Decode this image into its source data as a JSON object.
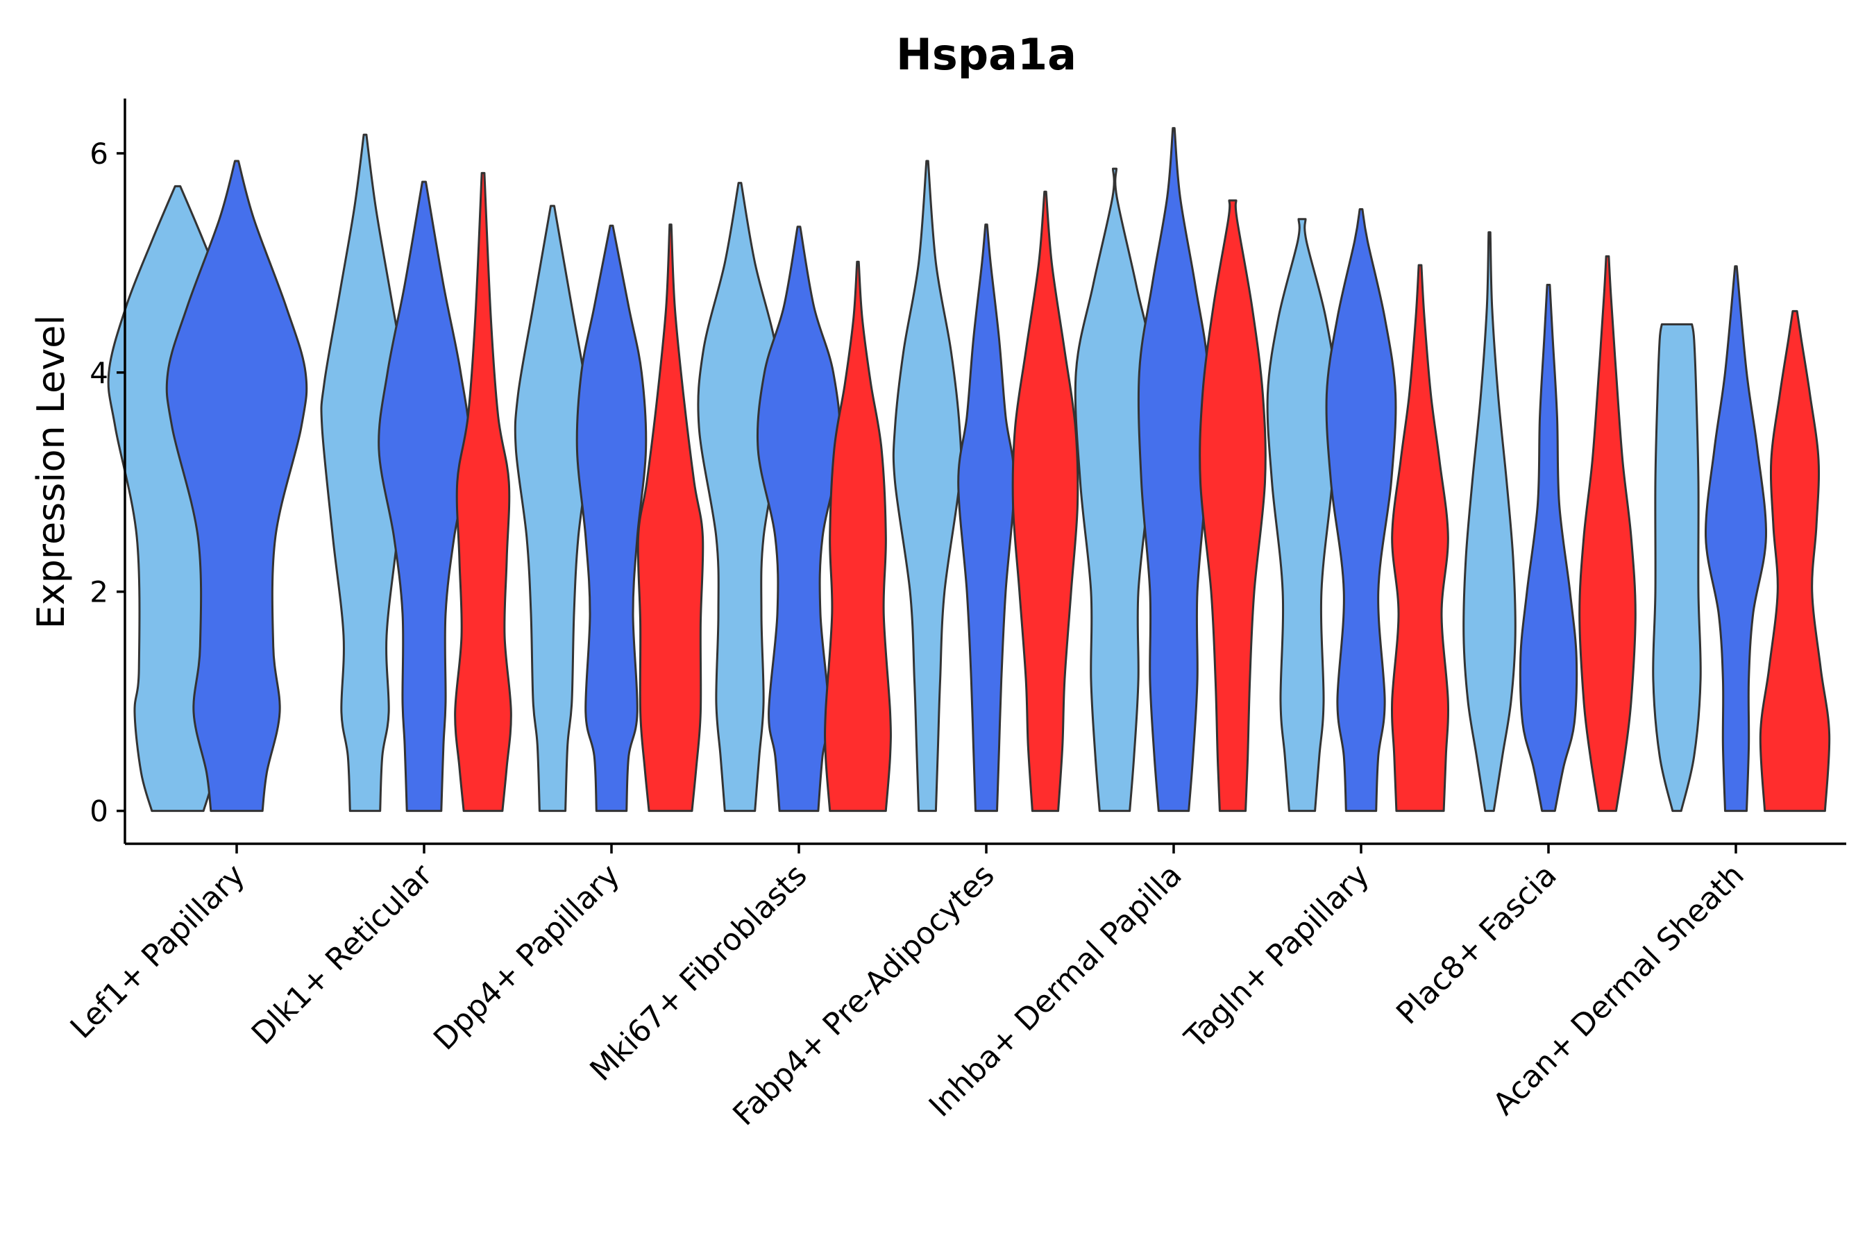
{
  "chart_data": {
    "type": "violin",
    "title": "Hspa1a",
    "xlabel": "",
    "ylabel": "Expression Level",
    "ylim": [
      -0.3,
      6.5
    ],
    "yticks": [
      0,
      2,
      4,
      6
    ],
    "grid": false,
    "legend": "none",
    "group_colors": [
      "#7fbfec",
      "#4570ec",
      "#ff2d2d"
    ],
    "categories": [
      "Lef1+ Papillary",
      "Dlk1+ Reticular",
      "Dpp4+ Papillary",
      "Mki67+ Fibroblasts",
      "Fabp4+ Pre-Adipocytes",
      "Inhba+ Dermal Papilla",
      "Tagln+ Papillary",
      "Plac8+ Fascia",
      "Acan+ Dermal Sheath"
    ],
    "violins": [
      {
        "category": "Lef1+ Papillary",
        "group": 0,
        "max": 5.7,
        "profile": [
          [
            0,
            0.6
          ],
          [
            0.35,
            0.85
          ],
          [
            0.9,
            1.0
          ],
          [
            1.3,
            0.9
          ],
          [
            2.5,
            0.95
          ],
          [
            3.5,
            1.45
          ],
          [
            4.0,
            1.6
          ],
          [
            4.6,
            1.2
          ],
          [
            5.2,
            0.6
          ],
          [
            5.7,
            0.06
          ]
        ]
      },
      {
        "category": "Lef1+ Papillary",
        "group": 1,
        "max": 5.93,
        "profile": [
          [
            0,
            0.6
          ],
          [
            0.35,
            0.7
          ],
          [
            0.9,
            1.0
          ],
          [
            1.5,
            0.85
          ],
          [
            2.5,
            0.9
          ],
          [
            3.5,
            1.5
          ],
          [
            4.0,
            1.6
          ],
          [
            4.6,
            1.15
          ],
          [
            5.4,
            0.4
          ],
          [
            5.93,
            0.04
          ]
        ]
      },
      {
        "category": "Dlk1+ Reticular",
        "group": 0,
        "max": 6.17,
        "profile": [
          [
            0,
            0.35
          ],
          [
            0.5,
            0.4
          ],
          [
            0.9,
            0.55
          ],
          [
            1.6,
            0.5
          ],
          [
            2.5,
            0.75
          ],
          [
            3.5,
            1.0
          ],
          [
            3.9,
            0.95
          ],
          [
            4.7,
            0.6
          ],
          [
            5.5,
            0.25
          ],
          [
            6.17,
            0.03
          ]
        ]
      },
      {
        "category": "Dlk1+ Reticular",
        "group": 1,
        "max": 5.74,
        "profile": [
          [
            0,
            0.4
          ],
          [
            0.6,
            0.45
          ],
          [
            1.0,
            0.5
          ],
          [
            1.8,
            0.5
          ],
          [
            2.5,
            0.7
          ],
          [
            3.3,
            1.05
          ],
          [
            4.0,
            0.85
          ],
          [
            4.8,
            0.45
          ],
          [
            5.74,
            0.04
          ]
        ]
      },
      {
        "category": "Dlk1+ Reticular",
        "group": 2,
        "max": 5.82,
        "profile": [
          [
            0,
            0.45
          ],
          [
            0.4,
            0.55
          ],
          [
            0.9,
            0.65
          ],
          [
            1.6,
            0.5
          ],
          [
            2.3,
            0.55
          ],
          [
            3.0,
            0.6
          ],
          [
            3.6,
            0.35
          ],
          [
            4.5,
            0.18
          ],
          [
            5.82,
            0.03
          ]
        ]
      },
      {
        "category": "Dpp4+ Papillary",
        "group": 0,
        "max": 5.52,
        "profile": [
          [
            0,
            0.3
          ],
          [
            0.6,
            0.35
          ],
          [
            1.0,
            0.45
          ],
          [
            1.8,
            0.5
          ],
          [
            2.5,
            0.6
          ],
          [
            3.3,
            0.85
          ],
          [
            3.8,
            0.8
          ],
          [
            4.6,
            0.45
          ],
          [
            5.52,
            0.04
          ]
        ]
      },
      {
        "category": "Dpp4+ Papillary",
        "group": 1,
        "max": 5.34,
        "profile": [
          [
            0,
            0.35
          ],
          [
            0.5,
            0.4
          ],
          [
            0.9,
            0.6
          ],
          [
            1.8,
            0.5
          ],
          [
            2.5,
            0.6
          ],
          [
            3.3,
            0.8
          ],
          [
            4.0,
            0.7
          ],
          [
            4.6,
            0.4
          ],
          [
            5.34,
            0.03
          ]
        ]
      },
      {
        "category": "Dpp4+ Papillary",
        "group": 2,
        "max": 5.35,
        "profile": [
          [
            0,
            0.5
          ],
          [
            0.4,
            0.6
          ],
          [
            0.9,
            0.7
          ],
          [
            1.7,
            0.7
          ],
          [
            2.5,
            0.75
          ],
          [
            3.0,
            0.55
          ],
          [
            3.8,
            0.3
          ],
          [
            4.6,
            0.1
          ],
          [
            5.35,
            0.02
          ]
        ]
      },
      {
        "category": "Mki67+ Fibroblasts",
        "group": 0,
        "max": 5.73,
        "profile": [
          [
            0,
            0.35
          ],
          [
            0.5,
            0.45
          ],
          [
            1.0,
            0.55
          ],
          [
            1.8,
            0.5
          ],
          [
            2.5,
            0.55
          ],
          [
            3.5,
            0.95
          ],
          [
            4.2,
            0.85
          ],
          [
            5.0,
            0.35
          ],
          [
            5.73,
            0.03
          ]
        ]
      },
      {
        "category": "Mki67+ Fibroblasts",
        "group": 1,
        "max": 5.33,
        "profile": [
          [
            0,
            0.45
          ],
          [
            0.5,
            0.55
          ],
          [
            0.9,
            0.7
          ],
          [
            1.8,
            0.5
          ],
          [
            2.5,
            0.55
          ],
          [
            3.3,
            0.95
          ],
          [
            4.0,
            0.8
          ],
          [
            4.6,
            0.35
          ],
          [
            5.33,
            0.03
          ]
        ]
      },
      {
        "category": "Mki67+ Fibroblasts",
        "group": 2,
        "max": 5.01,
        "profile": [
          [
            0,
            0.65
          ],
          [
            0.5,
            0.75
          ],
          [
            0.9,
            0.75
          ],
          [
            1.8,
            0.6
          ],
          [
            2.5,
            0.65
          ],
          [
            3.3,
            0.55
          ],
          [
            3.9,
            0.3
          ],
          [
            4.5,
            0.1
          ],
          [
            5.01,
            0.02
          ]
        ]
      },
      {
        "category": "Fabp4+ Pre-Adipocytes",
        "group": 0,
        "max": 5.93,
        "profile": [
          [
            0,
            0.2
          ],
          [
            0.6,
            0.25
          ],
          [
            1.2,
            0.3
          ],
          [
            2.0,
            0.4
          ],
          [
            3.0,
            0.75
          ],
          [
            3.5,
            0.75
          ],
          [
            4.2,
            0.55
          ],
          [
            5.0,
            0.2
          ],
          [
            5.93,
            0.02
          ]
        ]
      },
      {
        "category": "Fabp4+ Pre-Adipocytes",
        "group": 1,
        "max": 5.35,
        "profile": [
          [
            0,
            0.25
          ],
          [
            0.6,
            0.3
          ],
          [
            1.2,
            0.35
          ],
          [
            2.0,
            0.45
          ],
          [
            3.0,
            0.65
          ],
          [
            3.6,
            0.45
          ],
          [
            4.3,
            0.3
          ],
          [
            5.0,
            0.1
          ],
          [
            5.35,
            0.02
          ]
        ]
      },
      {
        "category": "Fabp4+ Pre-Adipocytes",
        "group": 2,
        "max": 5.65,
        "profile": [
          [
            0,
            0.3
          ],
          [
            0.6,
            0.4
          ],
          [
            1.2,
            0.45
          ],
          [
            2.0,
            0.6
          ],
          [
            2.8,
            0.75
          ],
          [
            3.5,
            0.7
          ],
          [
            4.2,
            0.45
          ],
          [
            5.0,
            0.15
          ],
          [
            5.65,
            0.02
          ]
        ]
      },
      {
        "category": "Inhba+ Dermal Papilla",
        "group": 0,
        "max": 5.86,
        "profile": [
          [
            0,
            0.35
          ],
          [
            0.5,
            0.45
          ],
          [
            1.2,
            0.55
          ],
          [
            2.0,
            0.55
          ],
          [
            3.0,
            0.8
          ],
          [
            4.0,
            0.9
          ],
          [
            4.8,
            0.5
          ],
          [
            5.6,
            0.05
          ],
          [
            5.86,
            0.04
          ]
        ]
      },
      {
        "category": "Inhba+ Dermal Papilla",
        "group": 1,
        "max": 6.23,
        "profile": [
          [
            0,
            0.35
          ],
          [
            0.5,
            0.45
          ],
          [
            1.2,
            0.55
          ],
          [
            2.0,
            0.55
          ],
          [
            3.0,
            0.75
          ],
          [
            4.0,
            0.8
          ],
          [
            4.8,
            0.5
          ],
          [
            5.6,
            0.15
          ],
          [
            6.23,
            0.02
          ]
        ]
      },
      {
        "category": "Inhba+ Dermal Papilla",
        "group": 2,
        "max": 5.57,
        "profile": [
          [
            0,
            0.3
          ],
          [
            0.5,
            0.35
          ],
          [
            1.2,
            0.4
          ],
          [
            2.0,
            0.5
          ],
          [
            3.0,
            0.75
          ],
          [
            3.8,
            0.7
          ],
          [
            4.6,
            0.45
          ],
          [
            5.4,
            0.1
          ],
          [
            5.57,
            0.08
          ]
        ]
      },
      {
        "category": "Tagln+ Papillary",
        "group": 0,
        "max": 5.4,
        "profile": [
          [
            0,
            0.3
          ],
          [
            0.5,
            0.4
          ],
          [
            1.0,
            0.5
          ],
          [
            2.0,
            0.45
          ],
          [
            3.0,
            0.7
          ],
          [
            3.8,
            0.8
          ],
          [
            4.5,
            0.55
          ],
          [
            5.2,
            0.1
          ],
          [
            5.4,
            0.08
          ]
        ]
      },
      {
        "category": "Tagln+ Papillary",
        "group": 1,
        "max": 5.49,
        "profile": [
          [
            0,
            0.35
          ],
          [
            0.5,
            0.4
          ],
          [
            1.0,
            0.55
          ],
          [
            2.0,
            0.4
          ],
          [
            3.0,
            0.7
          ],
          [
            3.8,
            0.8
          ],
          [
            4.5,
            0.55
          ],
          [
            5.2,
            0.15
          ],
          [
            5.49,
            0.03
          ]
        ]
      },
      {
        "category": "Tagln+ Papillary",
        "group": 2,
        "max": 4.98,
        "profile": [
          [
            0,
            0.55
          ],
          [
            0.5,
            0.6
          ],
          [
            1.0,
            0.65
          ],
          [
            1.8,
            0.5
          ],
          [
            2.5,
            0.65
          ],
          [
            3.2,
            0.45
          ],
          [
            3.8,
            0.25
          ],
          [
            4.5,
            0.1
          ],
          [
            4.98,
            0.03
          ]
        ]
      },
      {
        "category": "Plac8+ Fascia",
        "group": 0,
        "max": 5.28,
        "profile": [
          [
            0,
            0.1
          ],
          [
            0.5,
            0.3
          ],
          [
            1.0,
            0.5
          ],
          [
            1.6,
            0.6
          ],
          [
            2.3,
            0.55
          ],
          [
            3.0,
            0.4
          ],
          [
            3.8,
            0.2
          ],
          [
            4.6,
            0.06
          ],
          [
            5.28,
            0.02
          ]
        ]
      },
      {
        "category": "Plac8+ Fascia",
        "group": 1,
        "max": 4.8,
        "profile": [
          [
            0,
            0.15
          ],
          [
            0.4,
            0.35
          ],
          [
            0.8,
            0.6
          ],
          [
            1.4,
            0.65
          ],
          [
            2.0,
            0.5
          ],
          [
            2.8,
            0.25
          ],
          [
            3.6,
            0.2
          ],
          [
            4.3,
            0.1
          ],
          [
            4.8,
            0.03
          ]
        ]
      },
      {
        "category": "Plac8+ Fascia",
        "group": 2,
        "max": 5.06,
        "profile": [
          [
            0,
            0.2
          ],
          [
            0.5,
            0.4
          ],
          [
            1.0,
            0.55
          ],
          [
            1.8,
            0.65
          ],
          [
            2.5,
            0.55
          ],
          [
            3.2,
            0.35
          ],
          [
            4.0,
            0.2
          ],
          [
            4.7,
            0.08
          ],
          [
            5.06,
            0.03
          ]
        ]
      },
      {
        "category": "Acan+ Dermal Sheath",
        "group": 0,
        "max": 4.44,
        "profile": [
          [
            0,
            0.1
          ],
          [
            0.5,
            0.4
          ],
          [
            1.2,
            0.55
          ],
          [
            2.0,
            0.5
          ],
          [
            3.0,
            0.5
          ],
          [
            3.8,
            0.45
          ],
          [
            4.3,
            0.4
          ],
          [
            4.44,
            0.35
          ]
        ]
      },
      {
        "category": "Acan+ Dermal Sheath",
        "group": 1,
        "max": 4.97,
        "profile": [
          [
            0,
            0.25
          ],
          [
            0.6,
            0.3
          ],
          [
            1.2,
            0.3
          ],
          [
            1.8,
            0.4
          ],
          [
            2.5,
            0.7
          ],
          [
            3.3,
            0.5
          ],
          [
            4.0,
            0.25
          ],
          [
            4.97,
            0.02
          ]
        ]
      },
      {
        "category": "Acan+ Dermal Sheath",
        "group": 2,
        "max": 4.56,
        "profile": [
          [
            0,
            0.7
          ],
          [
            0.7,
            0.8
          ],
          [
            1.3,
            0.6
          ],
          [
            2.0,
            0.4
          ],
          [
            2.6,
            0.5
          ],
          [
            3.2,
            0.55
          ],
          [
            3.8,
            0.35
          ],
          [
            4.3,
            0.15
          ],
          [
            4.56,
            0.05
          ]
        ]
      }
    ]
  }
}
